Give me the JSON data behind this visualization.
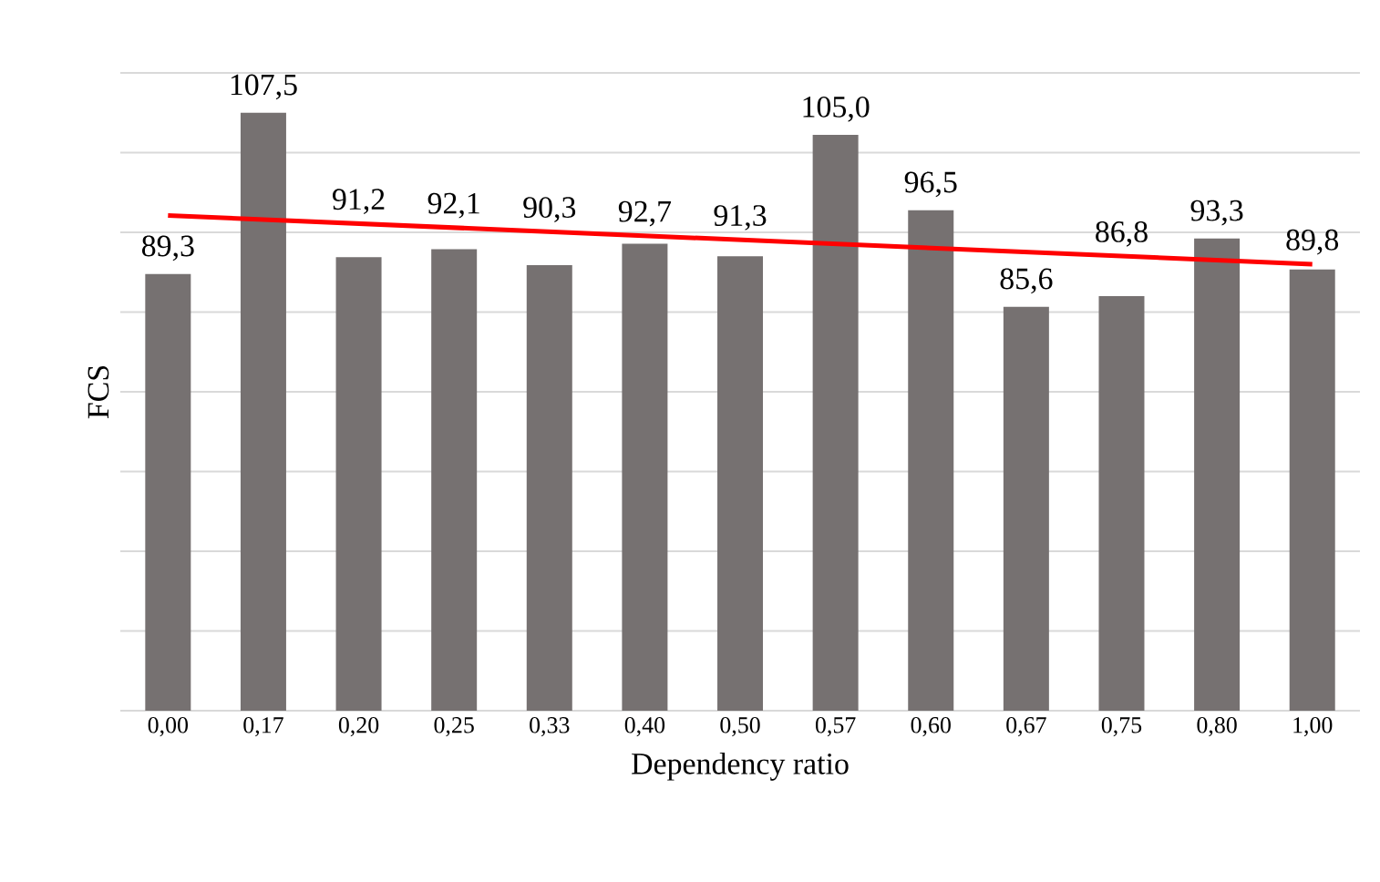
{
  "chart_data": {
    "type": "bar",
    "xlabel": "Dependency ratio",
    "ylabel": "FCS",
    "categories": [
      "0,00",
      "0,17",
      "0,20",
      "0,25",
      "0,33",
      "0,40",
      "0,50",
      "0,57",
      "0,60",
      "0,67",
      "0,75",
      "0,80",
      "1,00"
    ],
    "ylim": [
      40,
      112
    ],
    "yticks": [
      {
        "value": 40,
        "label": null
      },
      {
        "value": 49,
        "label": null
      },
      {
        "value": 58,
        "label": null
      },
      {
        "value": 67,
        "label": null
      },
      {
        "value": 76,
        "label": null
      },
      {
        "value": 85,
        "label": null
      },
      {
        "value": 94,
        "label": null
      },
      {
        "value": 103,
        "label": null
      },
      {
        "value": 112,
        "label": null
      }
    ],
    "tick_labels": "x",
    "grid": "y",
    "series": [
      {
        "color": "#767171",
        "values": [
          89.3,
          107.5,
          91.2,
          92.1,
          90.3,
          92.7,
          91.3,
          105.0,
          96.5,
          85.6,
          86.8,
          93.3,
          89.8
        ],
        "value_labels": [
          "89,3",
          "107,5",
          "91,2",
          "92,1",
          "90,3",
          "92,7",
          "91,3",
          "105,0",
          "96,5",
          "85,6",
          "86,8",
          "93,3",
          "89,8"
        ]
      },
      {
        "type": "line",
        "color": "#ff0000",
        "x": [
          "0,00",
          "1,00"
        ],
        "values": [
          95.9,
          90.4
        ]
      }
    ]
  }
}
